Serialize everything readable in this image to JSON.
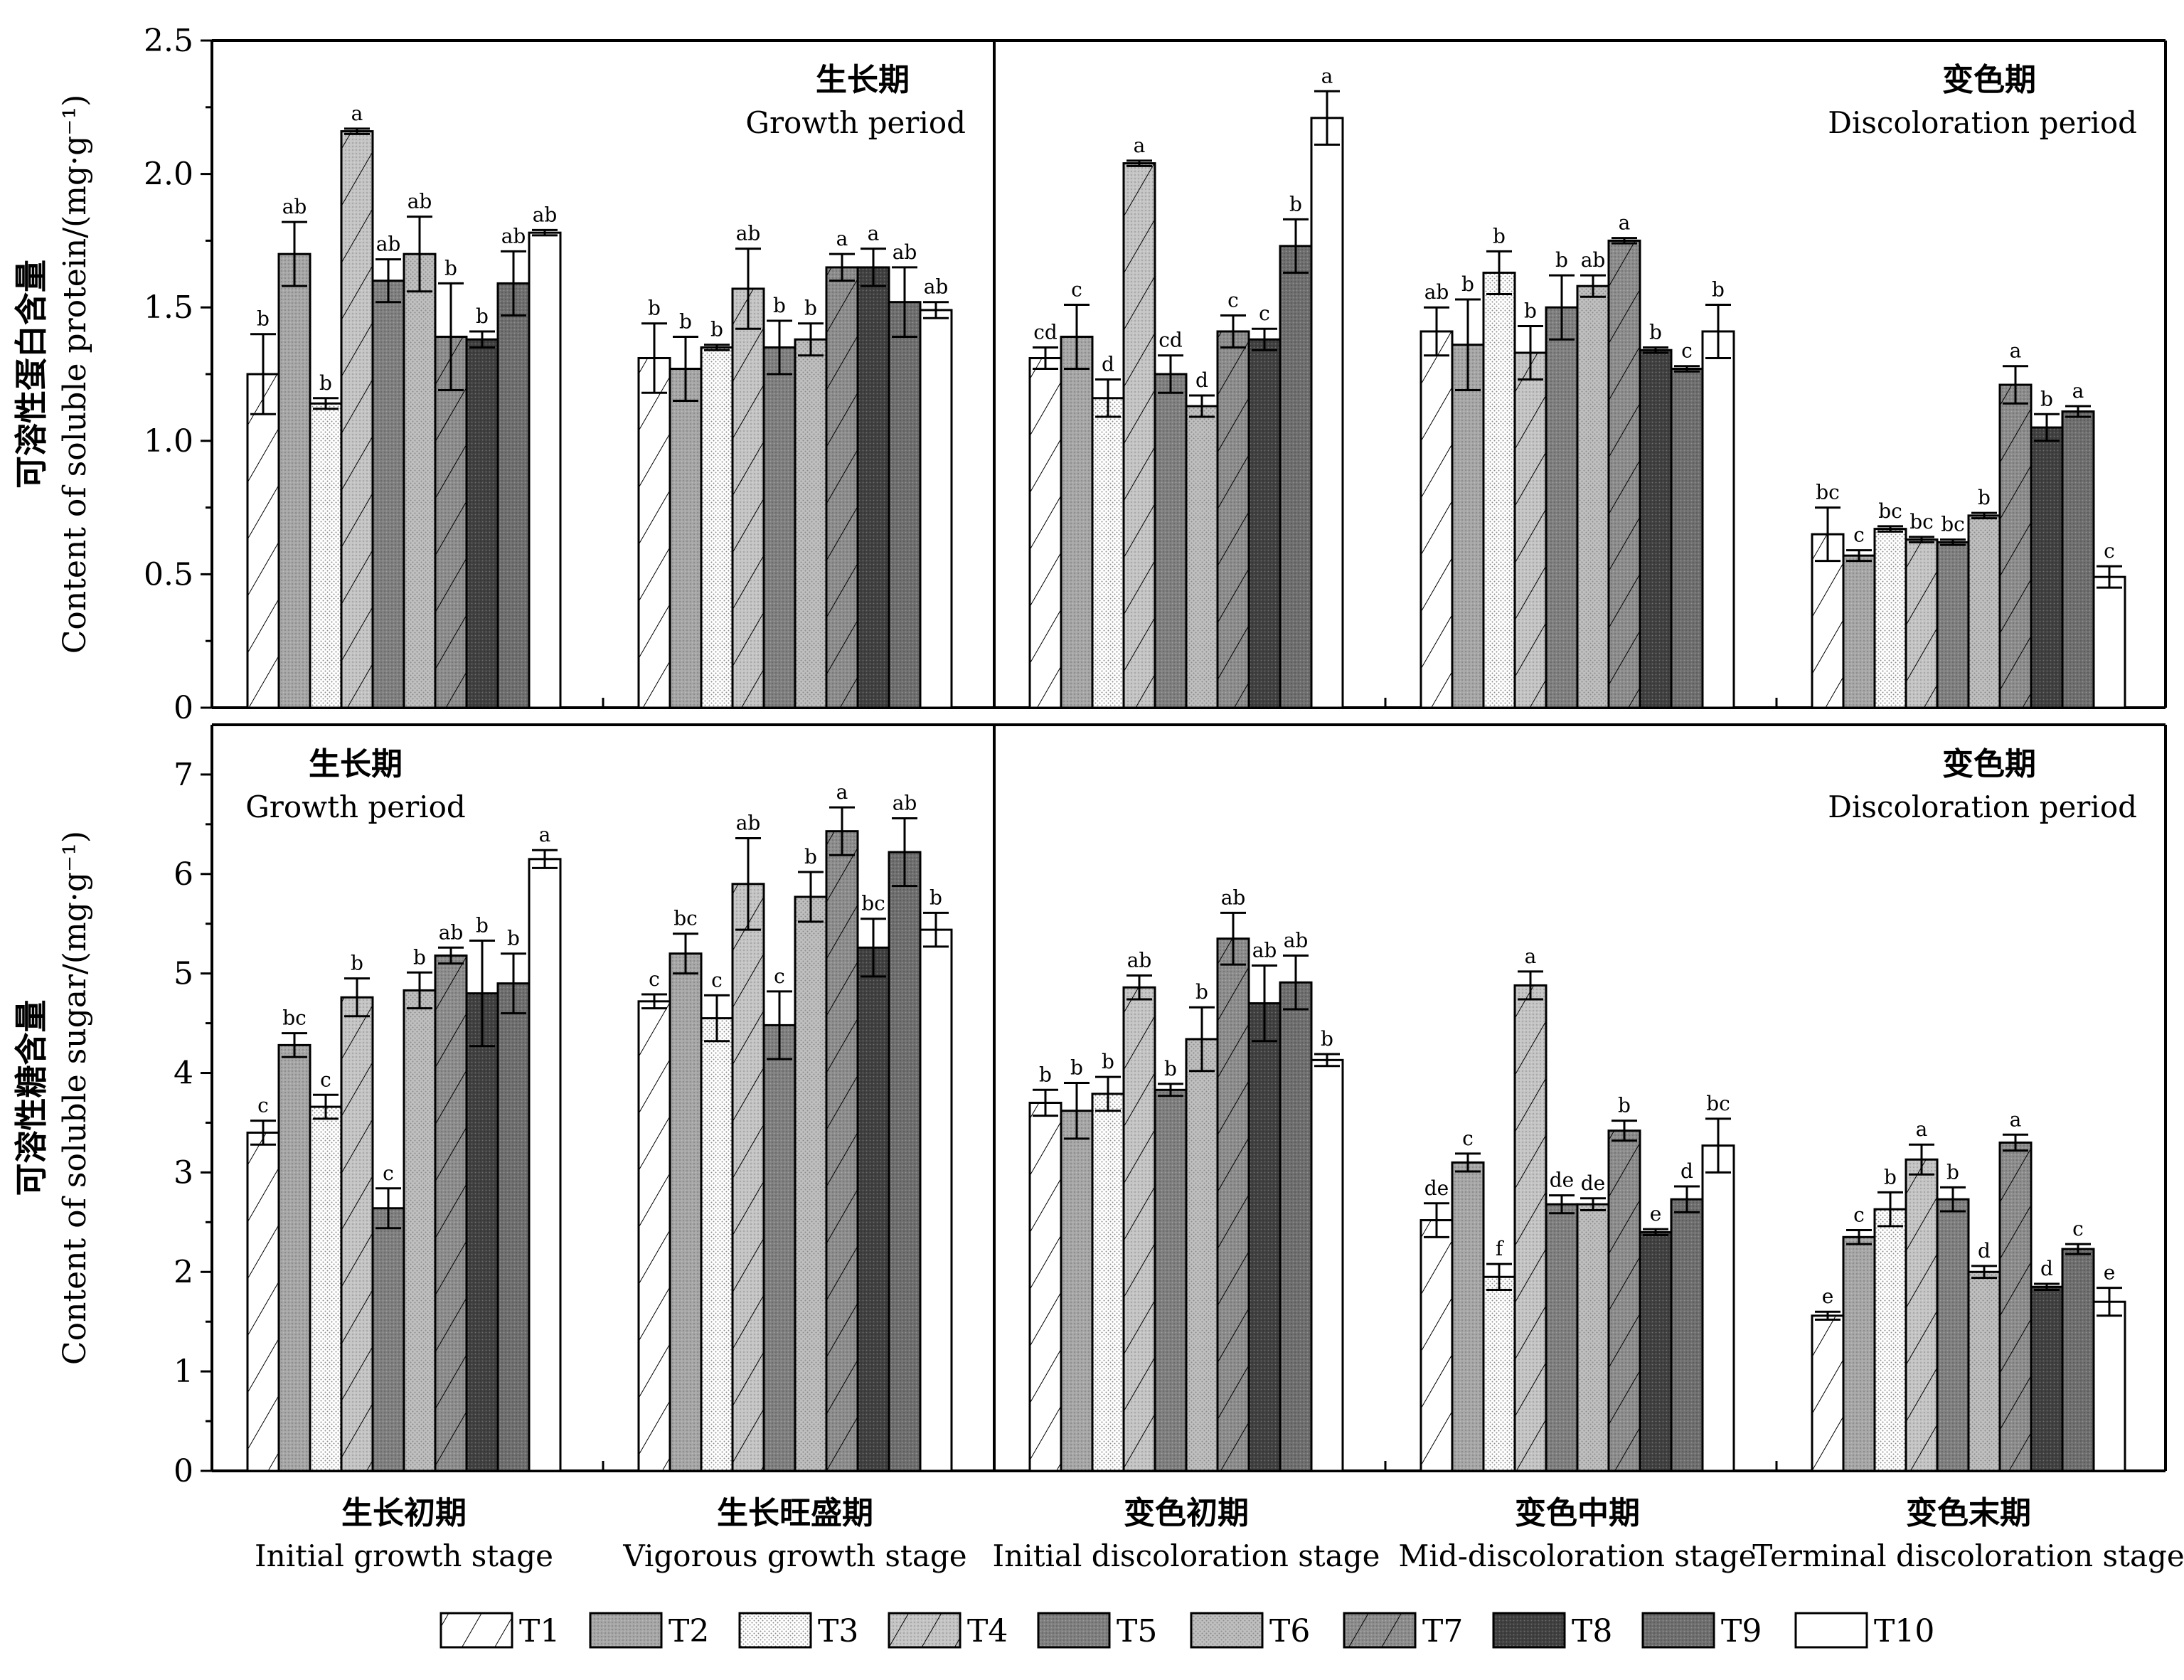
{
  "colors": {
    "T1": "#ffffff",
    "T2": "#a6a6a6",
    "T3": "#ffffff",
    "T4": "#c4c4c4",
    "T5": "#7f7f7f",
    "T6": "#bfbfbf",
    "T7": "#8c8c8c",
    "T8": "#404040",
    "T9": "#6e6e6e",
    "T10": "#ffffff"
  },
  "chart_data": [
    {
      "type": "bar",
      "panel": "top",
      "ylabel_cn": "可溶性蛋白含量",
      "ylabel_en": "Content of soluble protein/(mg·g⁻¹)",
      "ylim": [
        0,
        2.5
      ],
      "yticks": [
        "0",
        "0.5",
        "1.0",
        "1.5",
        "2.0",
        "2.5"
      ],
      "categories": [
        "Initial growth stage",
        "Vigorous growth stage",
        "Initial discoloration stage",
        "Mid-discoloration stage",
        "Terminal discoloration stage"
      ],
      "periods": [
        {
          "cn": "生长期",
          "en": "Growth period"
        },
        {
          "cn": "变色期",
          "en": "Discoloration period"
        }
      ],
      "series": [
        {
          "name": "T1",
          "values": [
            1.25,
            1.31,
            1.31,
            1.41,
            0.65
          ],
          "errors": [
            0.15,
            0.13,
            0.04,
            0.09,
            0.1
          ],
          "labels": [
            "b",
            "b",
            "cd",
            "ab",
            "bc"
          ]
        },
        {
          "name": "T2",
          "values": [
            1.7,
            1.27,
            1.39,
            1.36,
            0.57
          ],
          "errors": [
            0.12,
            0.12,
            0.12,
            0.17,
            0.02
          ],
          "labels": [
            "ab",
            "b",
            "c",
            "b",
            "c"
          ]
        },
        {
          "name": "T3",
          "values": [
            1.14,
            1.35,
            1.16,
            1.63,
            0.67
          ],
          "errors": [
            0.02,
            0.01,
            0.07,
            0.08,
            0.01
          ],
          "labels": [
            "b",
            "b",
            "d",
            "b",
            "bc"
          ]
        },
        {
          "name": "T4",
          "values": [
            2.16,
            1.57,
            2.04,
            1.33,
            0.63
          ],
          "errors": [
            0.01,
            0.15,
            0.01,
            0.1,
            0.01
          ],
          "labels": [
            "a",
            "ab",
            "a",
            "b",
            "bc"
          ]
        },
        {
          "name": "T5",
          "values": [
            1.6,
            1.35,
            1.25,
            1.5,
            0.62
          ],
          "errors": [
            0.08,
            0.1,
            0.07,
            0.12,
            0.01
          ],
          "labels": [
            "ab",
            "b",
            "cd",
            "b",
            "bc"
          ]
        },
        {
          "name": "T6",
          "values": [
            1.7,
            1.38,
            1.13,
            1.58,
            0.72
          ],
          "errors": [
            0.14,
            0.06,
            0.04,
            0.04,
            0.01
          ],
          "labels": [
            "ab",
            "b",
            "d",
            "ab",
            "b"
          ]
        },
        {
          "name": "T7",
          "values": [
            1.39,
            1.65,
            1.41,
            1.75,
            1.21
          ],
          "errors": [
            0.2,
            0.05,
            0.06,
            0.01,
            0.07
          ],
          "labels": [
            "b",
            "a",
            "c",
            "a",
            "a"
          ]
        },
        {
          "name": "T8",
          "values": [
            1.38,
            1.65,
            1.38,
            1.34,
            1.05
          ],
          "errors": [
            0.03,
            0.07,
            0.04,
            0.01,
            0.05
          ],
          "labels": [
            "b",
            "a",
            "c",
            "b",
            "b"
          ]
        },
        {
          "name": "T9",
          "values": [
            1.59,
            1.52,
            1.73,
            1.27,
            1.11
          ],
          "errors": [
            0.12,
            0.13,
            0.1,
            0.01,
            0.02
          ],
          "labels": [
            "ab",
            "ab",
            "b",
            "c",
            "a"
          ]
        },
        {
          "name": "T10",
          "values": [
            1.78,
            1.49,
            2.21,
            1.41,
            0.49
          ],
          "errors": [
            0.01,
            0.03,
            0.1,
            0.1,
            0.04
          ],
          "labels": [
            "ab",
            "ab",
            "a",
            "b",
            "c"
          ]
        }
      ]
    },
    {
      "type": "bar",
      "panel": "bottom",
      "ylabel_cn": "可溶性糖含量",
      "ylabel_en": "Content of soluble sugar/(mg·g⁻¹)",
      "ylim": [
        0,
        7.5
      ],
      "yticks": [
        "0",
        "1",
        "2",
        "3",
        "4",
        "5",
        "6",
        "7"
      ],
      "categories": [
        "Initial growth stage",
        "Vigorous growth stage",
        "Initial discoloration stage",
        "Mid-discoloration stage",
        "Terminal discoloration stage"
      ],
      "periods": [
        {
          "cn": "生长期",
          "en": "Growth period"
        },
        {
          "cn": "变色期",
          "en": "Discoloration period"
        }
      ],
      "series": [
        {
          "name": "T1",
          "values": [
            3.4,
            4.72,
            3.7,
            2.52,
            1.56
          ],
          "errors": [
            0.12,
            0.07,
            0.13,
            0.17,
            0.04
          ],
          "labels": [
            "c",
            "c",
            "b",
            "de",
            "e"
          ]
        },
        {
          "name": "T2",
          "values": [
            4.28,
            5.2,
            3.62,
            3.1,
            2.35
          ],
          "errors": [
            0.12,
            0.2,
            0.28,
            0.09,
            0.07
          ],
          "labels": [
            "bc",
            "bc",
            "b",
            "c",
            "c"
          ]
        },
        {
          "name": "T3",
          "values": [
            3.66,
            4.55,
            3.79,
            1.95,
            2.63
          ],
          "errors": [
            0.12,
            0.23,
            0.17,
            0.13,
            0.17
          ],
          "labels": [
            "c",
            "c",
            "b",
            "f",
            "b"
          ]
        },
        {
          "name": "T4",
          "values": [
            4.76,
            5.9,
            4.86,
            4.88,
            3.13
          ],
          "errors": [
            0.19,
            0.46,
            0.12,
            0.14,
            0.15
          ],
          "labels": [
            "b",
            "ab",
            "ab",
            "a",
            "a"
          ]
        },
        {
          "name": "T5",
          "values": [
            2.64,
            4.48,
            3.83,
            2.68,
            2.73
          ],
          "errors": [
            0.2,
            0.34,
            0.06,
            0.09,
            0.12
          ],
          "labels": [
            "c",
            "c",
            "b",
            "de",
            "b"
          ]
        },
        {
          "name": "T6",
          "values": [
            4.83,
            5.77,
            4.34,
            2.68,
            2.0
          ],
          "errors": [
            0.18,
            0.25,
            0.32,
            0.06,
            0.06
          ],
          "labels": [
            "b",
            "b",
            "b",
            "de",
            "d"
          ]
        },
        {
          "name": "T7",
          "values": [
            5.18,
            6.43,
            5.35,
            3.42,
            3.3
          ],
          "errors": [
            0.08,
            0.24,
            0.26,
            0.1,
            0.08
          ],
          "labels": [
            "ab",
            "a",
            "ab",
            "b",
            "a"
          ]
        },
        {
          "name": "T8",
          "values": [
            4.8,
            5.26,
            4.7,
            2.4,
            1.85
          ],
          "errors": [
            0.53,
            0.29,
            0.38,
            0.03,
            0.03
          ],
          "labels": [
            "b",
            "bc",
            "ab",
            "e",
            "d"
          ]
        },
        {
          "name": "T9",
          "values": [
            4.9,
            6.22,
            4.91,
            2.73,
            2.23
          ],
          "errors": [
            0.3,
            0.34,
            0.27,
            0.13,
            0.05
          ],
          "labels": [
            "b",
            "ab",
            "ab",
            "d",
            "c"
          ]
        },
        {
          "name": "T10",
          "values": [
            6.15,
            5.44,
            4.13,
            3.27,
            1.7
          ],
          "errors": [
            0.09,
            0.17,
            0.06,
            0.27,
            0.14
          ],
          "labels": [
            "a",
            "b",
            "b",
            "bc",
            "e"
          ]
        }
      ]
    }
  ],
  "groups": [
    {
      "cn": "生长初期",
      "en": "Initial growth stage"
    },
    {
      "cn": "生长旺盛期",
      "en": "Vigorous growth stage"
    },
    {
      "cn": "变色初期",
      "en": "Initial discoloration stage"
    },
    {
      "cn": "变色中期",
      "en": "Mid-discoloration stage"
    },
    {
      "cn": "变色末期",
      "en": "Terminal discoloration stage"
    }
  ],
  "legend": [
    "T1",
    "T2",
    "T3",
    "T4",
    "T5",
    "T6",
    "T7",
    "T8",
    "T9",
    "T10"
  ]
}
